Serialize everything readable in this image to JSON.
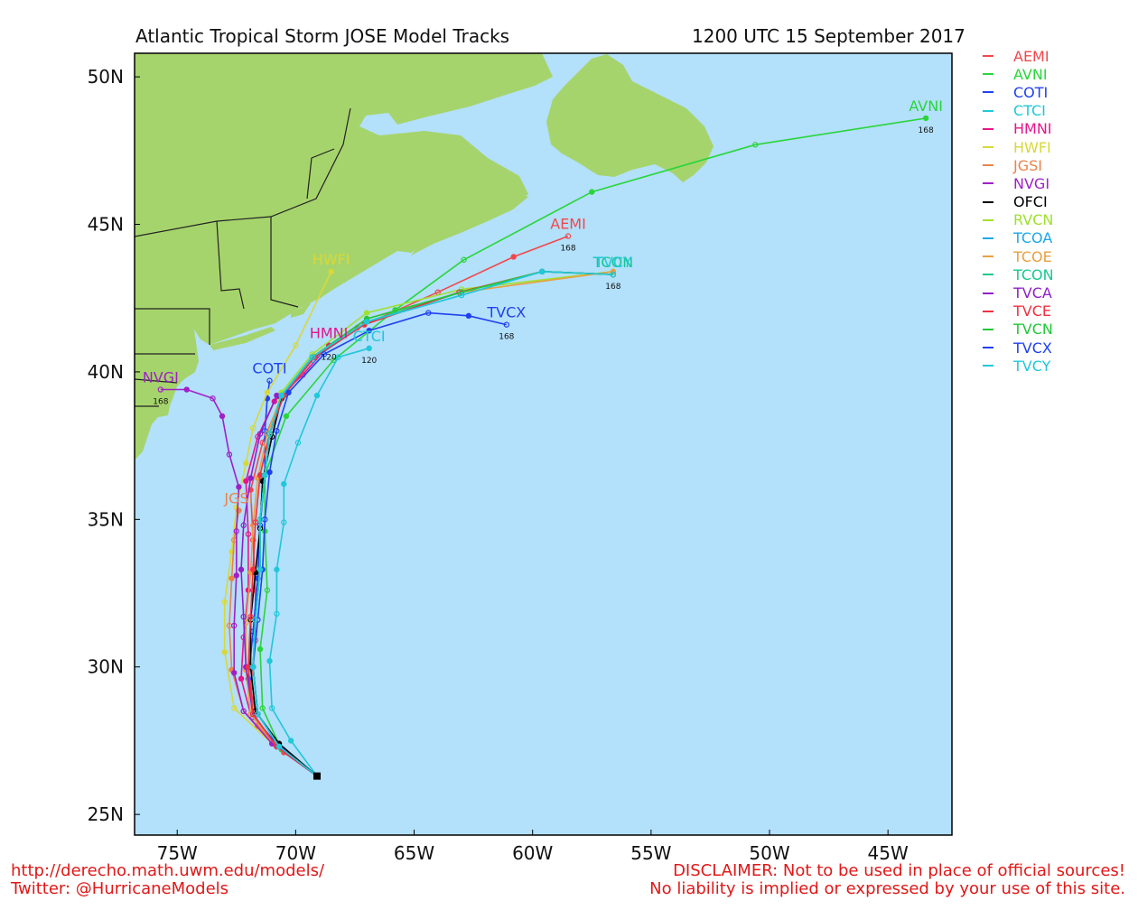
{
  "header": {
    "title": "Atlantic Tropical Storm JOSE Model Tracks",
    "datetime": "1200 UTC 15 September 2017"
  },
  "map": {
    "lon_range": [
      -76.8,
      -42.3
    ],
    "lat_range": [
      24.3,
      50.8
    ],
    "ocean_color": "#b3e0fb",
    "land_color": "#a6d46c",
    "lat_ticks": [
      "50N",
      "45N",
      "40N",
      "35N",
      "30N",
      "25N"
    ],
    "lon_ticks": [
      "75W",
      "70W",
      "65W",
      "60W",
      "55W",
      "50W",
      "45W"
    ]
  },
  "legend": [
    {
      "name": "AEMI",
      "color": "#f0484c"
    },
    {
      "name": "AVNI",
      "color": "#2ad53a"
    },
    {
      "name": "COTI",
      "color": "#2040f0"
    },
    {
      "name": "CTCI",
      "color": "#20c8d8"
    },
    {
      "name": "HMNI",
      "color": "#e8148c"
    },
    {
      "name": "HWFI",
      "color": "#d8d838"
    },
    {
      "name": "JGSI",
      "color": "#e8844c"
    },
    {
      "name": "NVGI",
      "color": "#a020c8"
    },
    {
      "name": "OFCI",
      "color": "#000000"
    },
    {
      "name": "RVCN",
      "color": "#a0e030"
    },
    {
      "name": "TCOA",
      "color": "#1ca8e8"
    },
    {
      "name": "TCOE",
      "color": "#e8a040"
    },
    {
      "name": "TCON",
      "color": "#18c890"
    },
    {
      "name": "TVCA",
      "color": "#9020c8"
    },
    {
      "name": "TVCE",
      "color": "#f03040"
    },
    {
      "name": "TVCN",
      "color": "#20c838"
    },
    {
      "name": "TVCX",
      "color": "#2040f0"
    },
    {
      "name": "TVCY",
      "color": "#20c8d8"
    }
  ],
  "tracks": [
    {
      "model": "AEMI",
      "color": "#f0484c",
      "end_label": "AEMI",
      "end_hour": "168",
      "points": [
        [
          -69.1,
          26.3
        ],
        [
          -70.5,
          27.1
        ],
        [
          -71.6,
          28.0
        ],
        [
          -71.9,
          29.3
        ],
        [
          -71.7,
          30.9
        ],
        [
          -71.7,
          32.6
        ],
        [
          -71.8,
          34.3
        ],
        [
          -71.9,
          36.0
        ],
        [
          -71.4,
          37.6
        ],
        [
          -70.6,
          39.1
        ],
        [
          -69.2,
          40.5
        ],
        [
          -67.4,
          41.5
        ],
        [
          -64.0,
          42.7
        ],
        [
          -60.8,
          43.9
        ],
        [
          -58.5,
          44.6
        ]
      ]
    },
    {
      "model": "AVNI",
      "color": "#2ad53a",
      "end_label": "AVNI",
      "end_hour": "168",
      "points": [
        [
          -69.1,
          26.3
        ],
        [
          -70.6,
          27.2
        ],
        [
          -71.4,
          28.6
        ],
        [
          -71.5,
          30.6
        ],
        [
          -71.2,
          32.6
        ],
        [
          -71.3,
          34.6
        ],
        [
          -71.3,
          36.5
        ],
        [
          -70.4,
          38.5
        ],
        [
          -68.4,
          40.4
        ],
        [
          -65.8,
          42.1
        ],
        [
          -62.9,
          43.8
        ],
        [
          -57.5,
          46.1
        ],
        [
          -50.6,
          47.7
        ],
        [
          -43.4,
          48.6
        ]
      ]
    },
    {
      "model": "COTI",
      "color": "#2040f0",
      "end_label": "COTI",
      "end_hour": "",
      "points": [
        [
          -69.1,
          26.3
        ],
        [
          -70.8,
          27.4
        ],
        [
          -71.8,
          28.3
        ],
        [
          -72.0,
          29.6
        ],
        [
          -71.8,
          31.2
        ],
        [
          -71.6,
          33.0
        ],
        [
          -71.5,
          34.8
        ],
        [
          -71.3,
          36.5
        ],
        [
          -71.3,
          38.0
        ],
        [
          -71.2,
          39.1
        ],
        [
          -71.1,
          39.7
        ]
      ]
    },
    {
      "model": "CTCI",
      "color": "#20c8d8",
      "end_label": "CTCI",
      "end_hour": "120",
      "points": [
        [
          -69.1,
          26.3
        ],
        [
          -70.2,
          27.5
        ],
        [
          -71.0,
          28.6
        ],
        [
          -71.1,
          30.2
        ],
        [
          -70.8,
          31.8
        ],
        [
          -70.8,
          33.3
        ],
        [
          -70.5,
          34.9
        ],
        [
          -70.5,
          36.2
        ],
        [
          -69.9,
          37.6
        ],
        [
          -69.1,
          39.2
        ],
        [
          -68.2,
          40.5
        ],
        [
          -66.9,
          40.8
        ]
      ]
    },
    {
      "model": "HMNI",
      "color": "#e8148c",
      "end_label": "HMNI",
      "end_hour": "120",
      "points": [
        [
          -69.1,
          26.3
        ],
        [
          -70.8,
          27.3
        ],
        [
          -71.9,
          28.4
        ],
        [
          -72.3,
          29.6
        ],
        [
          -72.2,
          31.0
        ],
        [
          -72.0,
          32.6
        ],
        [
          -72.0,
          34.5
        ],
        [
          -72.1,
          36.3
        ],
        [
          -71.6,
          37.8
        ],
        [
          -70.9,
          39.0
        ],
        [
          -69.7,
          39.9
        ],
        [
          -68.6,
          40.9
        ]
      ]
    },
    {
      "model": "HWFI",
      "color": "#d8d838",
      "end_label": "HWFI",
      "end_hour": "",
      "points": [
        [
          -69.1,
          26.3
        ],
        [
          -71.0,
          27.4
        ],
        [
          -72.6,
          28.6
        ],
        [
          -73.0,
          30.5
        ],
        [
          -73.0,
          32.2
        ],
        [
          -72.7,
          33.9
        ],
        [
          -72.5,
          35.4
        ],
        [
          -72.1,
          36.9
        ],
        [
          -71.8,
          38.1
        ],
        [
          -71.2,
          39.3
        ],
        [
          -70.0,
          40.9
        ],
        [
          -68.5,
          43.4
        ]
      ]
    },
    {
      "model": "JGSI",
      "color": "#e8844c",
      "end_label": "JGSI",
      "end_hour": "",
      "points": [
        [
          -69.1,
          26.3
        ],
        [
          -70.9,
          27.4
        ],
        [
          -72.2,
          28.5
        ],
        [
          -72.7,
          29.9
        ],
        [
          -72.8,
          31.4
        ],
        [
          -72.7,
          33.0
        ],
        [
          -72.6,
          34.3
        ],
        [
          -72.4,
          35.3
        ]
      ]
    },
    {
      "model": "NVGI",
      "color": "#a020c8",
      "end_label": "NVGI",
      "end_hour": "168",
      "points": [
        [
          -69.1,
          26.3
        ],
        [
          -71.0,
          27.4
        ],
        [
          -72.2,
          28.5
        ],
        [
          -72.6,
          29.8
        ],
        [
          -72.6,
          31.4
        ],
        [
          -72.5,
          33.1
        ],
        [
          -72.5,
          34.6
        ],
        [
          -72.4,
          36.1
        ],
        [
          -72.8,
          37.2
        ],
        [
          -73.1,
          38.5
        ],
        [
          -73.5,
          39.1
        ],
        [
          -74.6,
          39.4
        ],
        [
          -75.7,
          39.4
        ]
      ]
    },
    {
      "model": "OFCI",
      "color": "#000000",
      "end_label": "",
      "end_hour": "",
      "points": [
        [
          -69.1,
          26.3
        ],
        [
          -70.7,
          27.4
        ],
        [
          -71.7,
          28.5
        ],
        [
          -71.9,
          30.0
        ],
        [
          -71.9,
          31.6
        ],
        [
          -71.7,
          33.2
        ],
        [
          -71.5,
          34.7
        ],
        [
          -71.4,
          36.3
        ],
        [
          -71.0,
          37.8
        ],
        [
          -70.6,
          39.1
        ]
      ]
    },
    {
      "model": "RVCN",
      "color": "#a0e030",
      "end_label": "",
      "end_hour": "",
      "points": [
        [
          -69.1,
          26.3
        ],
        [
          -70.7,
          27.3
        ],
        [
          -71.6,
          28.4
        ],
        [
          -71.8,
          30.0
        ],
        [
          -71.7,
          31.6
        ],
        [
          -71.5,
          33.3
        ],
        [
          -71.5,
          35.0
        ],
        [
          -71.3,
          36.5
        ],
        [
          -71.1,
          37.9
        ],
        [
          -70.6,
          39.3
        ],
        [
          -69.3,
          40.6
        ],
        [
          -67.0,
          42.0
        ],
        [
          -63.0,
          42.8
        ],
        [
          -56.6,
          43.4
        ]
      ]
    },
    {
      "model": "TCOA",
      "color": "#1ca8e8",
      "end_label": "",
      "end_hour": "",
      "points": [
        [
          -69.1,
          26.3
        ],
        [
          -70.7,
          27.3
        ],
        [
          -71.6,
          28.4
        ],
        [
          -71.8,
          30.0
        ],
        [
          -71.7,
          31.6
        ],
        [
          -71.5,
          33.3
        ],
        [
          -71.5,
          35.0
        ],
        [
          -71.3,
          36.5
        ],
        [
          -71.1,
          37.9
        ],
        [
          -70.6,
          39.2
        ],
        [
          -69.3,
          40.4
        ],
        [
          -67.0,
          41.7
        ],
        [
          -63.0,
          42.6
        ],
        [
          -59.6,
          43.4
        ],
        [
          -56.6,
          43.3
        ]
      ]
    },
    {
      "model": "TCOE",
      "color": "#e8a040",
      "end_label": "",
      "end_hour": "",
      "points": [
        [
          -69.1,
          26.3
        ],
        [
          -70.8,
          27.3
        ],
        [
          -71.9,
          28.4
        ],
        [
          -72.1,
          29.9
        ],
        [
          -72.1,
          31.5
        ],
        [
          -71.9,
          33.2
        ],
        [
          -71.8,
          34.8
        ],
        [
          -71.6,
          36.4
        ],
        [
          -71.2,
          37.9
        ],
        [
          -70.6,
          39.2
        ],
        [
          -69.3,
          40.5
        ],
        [
          -67.0,
          41.8
        ],
        [
          -63.0,
          42.7
        ],
        [
          -56.6,
          43.4
        ]
      ]
    },
    {
      "model": "TCON",
      "color": "#18c890",
      "end_label": "TCON",
      "end_hour": "",
      "points": [
        [
          -69.1,
          26.3
        ],
        [
          -70.7,
          27.3
        ],
        [
          -71.6,
          28.4
        ],
        [
          -71.8,
          30.0
        ],
        [
          -71.7,
          31.6
        ],
        [
          -71.5,
          33.3
        ],
        [
          -71.5,
          35.0
        ],
        [
          -71.3,
          36.5
        ],
        [
          -71.1,
          37.9
        ],
        [
          -70.6,
          39.2
        ],
        [
          -69.3,
          40.5
        ],
        [
          -67.0,
          41.7
        ],
        [
          -63.0,
          42.7
        ],
        [
          -59.6,
          43.4
        ],
        [
          -56.6,
          43.3
        ]
      ]
    },
    {
      "model": "TVCA",
      "color": "#9020c8",
      "end_label": "",
      "end_hour": "",
      "points": [
        [
          -69.1,
          26.3
        ],
        [
          -70.8,
          27.3
        ],
        [
          -71.8,
          28.4
        ],
        [
          -72.1,
          30.0
        ],
        [
          -72.2,
          31.7
        ],
        [
          -72.3,
          33.3
        ],
        [
          -72.2,
          34.8
        ],
        [
          -71.9,
          36.4
        ],
        [
          -71.5,
          37.9
        ],
        [
          -70.8,
          39.2
        ]
      ]
    },
    {
      "model": "TVCE",
      "color": "#f03040",
      "end_label": "",
      "end_hour": "",
      "points": [
        [
          -69.1,
          26.3
        ],
        [
          -70.8,
          27.3
        ],
        [
          -71.8,
          28.4
        ],
        [
          -72.0,
          30.0
        ],
        [
          -71.9,
          31.7
        ],
        [
          -71.8,
          33.3
        ],
        [
          -71.7,
          34.9
        ],
        [
          -71.5,
          36.5
        ],
        [
          -71.1,
          37.9
        ],
        [
          -70.5,
          39.2
        ],
        [
          -69.2,
          40.5
        ],
        [
          -67.1,
          41.6
        ],
        [
          -63.1,
          42.7
        ],
        [
          -59.6,
          43.4
        ],
        [
          -56.6,
          43.3
        ]
      ]
    },
    {
      "model": "TVCN",
      "color": "#20c838",
      "end_label": "",
      "end_hour": "",
      "points": [
        [
          -69.1,
          26.3
        ],
        [
          -70.7,
          27.3
        ],
        [
          -71.6,
          28.4
        ],
        [
          -71.8,
          30.0
        ],
        [
          -71.7,
          31.6
        ],
        [
          -71.5,
          33.3
        ],
        [
          -71.5,
          35.0
        ],
        [
          -71.3,
          36.5
        ],
        [
          -71.1,
          37.9
        ],
        [
          -70.6,
          39.2
        ],
        [
          -69.3,
          40.5
        ],
        [
          -67.0,
          41.8
        ],
        [
          -63.0,
          42.7
        ],
        [
          -59.6,
          43.4
        ],
        [
          -56.6,
          43.3
        ]
      ]
    },
    {
      "model": "TVCX",
      "color": "#2040f0",
      "end_label": "TVCX",
      "end_hour": "168",
      "points": [
        [
          -69.1,
          26.3
        ],
        [
          -70.7,
          27.3
        ],
        [
          -71.6,
          28.4
        ],
        [
          -71.8,
          30.0
        ],
        [
          -71.6,
          31.6
        ],
        [
          -71.4,
          33.3
        ],
        [
          -71.3,
          35.0
        ],
        [
          -71.1,
          36.6
        ],
        [
          -70.8,
          38.0
        ],
        [
          -70.3,
          39.3
        ],
        [
          -68.8,
          40.6
        ],
        [
          -66.9,
          41.4
        ],
        [
          -64.4,
          42.0
        ],
        [
          -62.7,
          41.9
        ],
        [
          -61.1,
          41.6
        ]
      ]
    },
    {
      "model": "TVCY",
      "color": "#20c8d8",
      "end_label": "TVCY",
      "end_hour": "168",
      "points": [
        [
          -69.1,
          26.3
        ],
        [
          -70.7,
          27.3
        ],
        [
          -71.6,
          28.4
        ],
        [
          -71.8,
          30.0
        ],
        [
          -71.7,
          31.6
        ],
        [
          -71.5,
          33.3
        ],
        [
          -71.5,
          35.0
        ],
        [
          -71.3,
          36.5
        ],
        [
          -71.1,
          37.9
        ],
        [
          -70.6,
          39.2
        ],
        [
          -69.3,
          40.5
        ],
        [
          -67.0,
          41.7
        ],
        [
          -63.0,
          42.6
        ],
        [
          -59.6,
          43.4
        ],
        [
          -56.6,
          43.3
        ]
      ]
    }
  ],
  "footer": {
    "url": "http://derecho.math.uwm.edu/models/",
    "twitter": "Twitter: @HurricaneModels",
    "disclaimer1": "DISCLAIMER: Not to be used in place of official sources!",
    "disclaimer2": "No liability is implied or expressed by your use of this site."
  }
}
